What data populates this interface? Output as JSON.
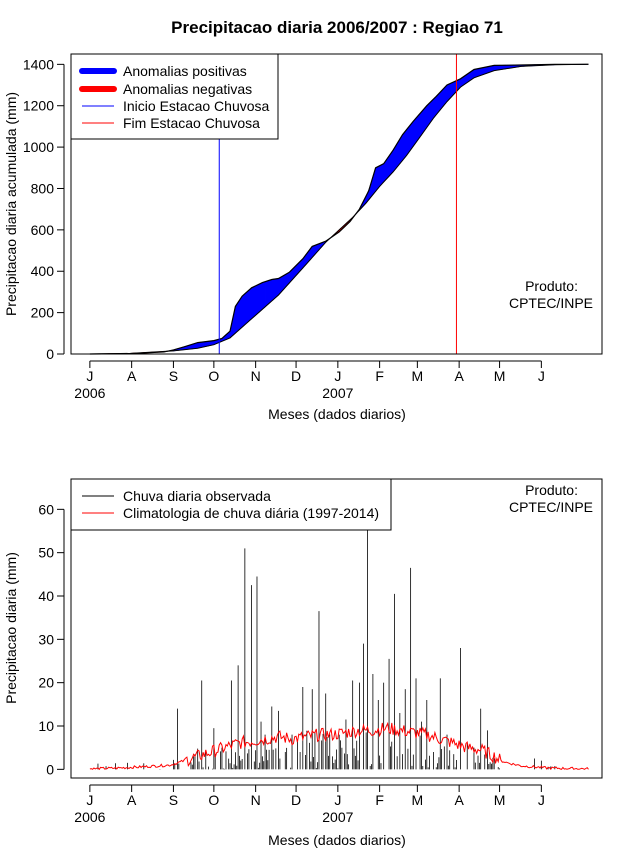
{
  "chart_data": [
    {
      "type": "area",
      "title": "Precipitacao diaria 2006/2007 : Regiao 71",
      "xlabel": "Meses (dados diarios)",
      "ylabel": "Precipitacao diaria acumulada (mm)",
      "ylim": [
        0,
        1450
      ],
      "yticks": [
        0,
        200,
        400,
        600,
        800,
        1000,
        1200,
        1400
      ],
      "x_ticks": [
        "J",
        "A",
        "S",
        "O",
        "N",
        "D",
        "J",
        "F",
        "M",
        "A",
        "M",
        "J"
      ],
      "year_labels": [
        "2006",
        "2007"
      ],
      "x_unit": "days since 1 Jul 2006",
      "xlim": [
        -14,
        380
      ],
      "onset_day": 96,
      "end_day": 272,
      "product_note": [
        "Produto:",
        "CPTEC/INPE"
      ],
      "legend": [
        {
          "label": "Anomalias positivas",
          "color": "#0000ff",
          "style": "thick"
        },
        {
          "label": "Anomalias negativas",
          "color": "#ff0000",
          "style": "thick"
        },
        {
          "label": "Inicio Estacao Chuvosa",
          "color": "#0000ff",
          "style": "thin"
        },
        {
          "label": "Fim Estacao Chuvosa",
          "color": "#ff0000",
          "style": "thin"
        }
      ],
      "climatology": {
        "day": [
          0,
          30,
          62,
          80,
          92,
          104,
          120,
          140,
          160,
          175,
          185,
          195,
          205,
          215,
          225,
          235,
          245,
          255,
          265,
          275,
          285,
          300,
          320,
          345,
          370
        ],
        "value": [
          0,
          3,
          15,
          28,
          45,
          78,
          170,
          285,
          430,
          540,
          600,
          660,
          730,
          810,
          880,
          960,
          1050,
          1140,
          1220,
          1290,
          1335,
          1370,
          1390,
          1398,
          1400
        ]
      },
      "observed": {
        "day": [
          0,
          30,
          55,
          62,
          70,
          80,
          92,
          98,
          104,
          108,
          113,
          120,
          128,
          135,
          140,
          148,
          158,
          165,
          175,
          185,
          193,
          200,
          207,
          212,
          218,
          225,
          232,
          240,
          250,
          257,
          265,
          275,
          285,
          300,
          320,
          345,
          370
        ],
        "value": [
          0,
          2,
          10,
          20,
          35,
          55,
          65,
          75,
          110,
          230,
          280,
          320,
          345,
          360,
          365,
          395,
          460,
          520,
          545,
          590,
          640,
          700,
          790,
          900,
          920,
          985,
          1060,
          1125,
          1200,
          1245,
          1300,
          1330,
          1375,
          1395,
          1397,
          1400,
          1400
        ]
      },
      "cursor_readout": ""
    },
    {
      "type": "line",
      "xlabel": "Meses (dados diarios)",
      "ylabel": "Precipitacao diaria (mm)",
      "ylim": [
        -2,
        67
      ],
      "yticks": [
        0,
        10,
        20,
        30,
        40,
        50,
        60
      ],
      "x_ticks": [
        "J",
        "A",
        "S",
        "O",
        "N",
        "D",
        "J",
        "F",
        "M",
        "A",
        "M",
        "J"
      ],
      "year_labels": [
        "2006",
        "2007"
      ],
      "x_unit": "days since 1 Jul 2006",
      "xlim": [
        -14,
        380
      ],
      "product_note": [
        "Produto:",
        "CPTEC/INPE"
      ],
      "legend": [
        {
          "label": "Chuva diaria observada",
          "color": "#000000"
        },
        {
          "label": "Climatologia de chuva diária (1997-2014)",
          "color": "#ff0000"
        }
      ],
      "observed_peaks": {
        "day": [
          28,
          65,
          77,
          83,
          92,
          98,
          105,
          110,
          115,
          120,
          124,
          127,
          130,
          135,
          140,
          145,
          150,
          158,
          165,
          170,
          175,
          180,
          185,
          190,
          195,
          200,
          203,
          206,
          210,
          214,
          218,
          222,
          226,
          230,
          234,
          238,
          242,
          246,
          250,
          255,
          260,
          265,
          270,
          275,
          280,
          285,
          290,
          295,
          300,
          330,
          335
        ],
        "value": [
          1.5,
          14,
          3,
          20.5,
          9.5,
          5,
          20.5,
          24,
          51,
          42.5,
          44.5,
          11,
          8,
          14.5,
          13.5,
          4,
          8,
          19,
          18.5,
          36.5,
          17.5,
          3,
          8,
          11.5,
          20.5,
          20,
          29,
          56,
          22,
          16,
          20,
          25.5,
          40.5,
          13,
          18.5,
          46.5,
          21,
          11,
          16,
          4,
          21,
          8,
          3.5,
          28,
          6,
          5,
          14,
          9,
          2.5,
          2.5,
          2
        ]
      },
      "climatology": {
        "day": [
          0,
          20,
          40,
          60,
          70,
          80,
          90,
          100,
          110,
          120,
          130,
          140,
          150,
          160,
          170,
          180,
          190,
          200,
          210,
          220,
          230,
          240,
          250,
          260,
          270,
          280,
          290,
          300,
          305,
          310,
          320,
          340,
          370
        ],
        "value": [
          0.1,
          0.3,
          0.6,
          1.0,
          2.0,
          3.0,
          4.0,
          5.0,
          6.0,
          6.5,
          7.0,
          7.5,
          7.0,
          7.5,
          8.0,
          8.0,
          8.5,
          9.0,
          9.0,
          9.5,
          9.0,
          8.5,
          8.0,
          7.0,
          6.0,
          5.0,
          4.5,
          3.0,
          2.0,
          1.5,
          0.8,
          0.3,
          0.1
        ]
      }
    }
  ]
}
